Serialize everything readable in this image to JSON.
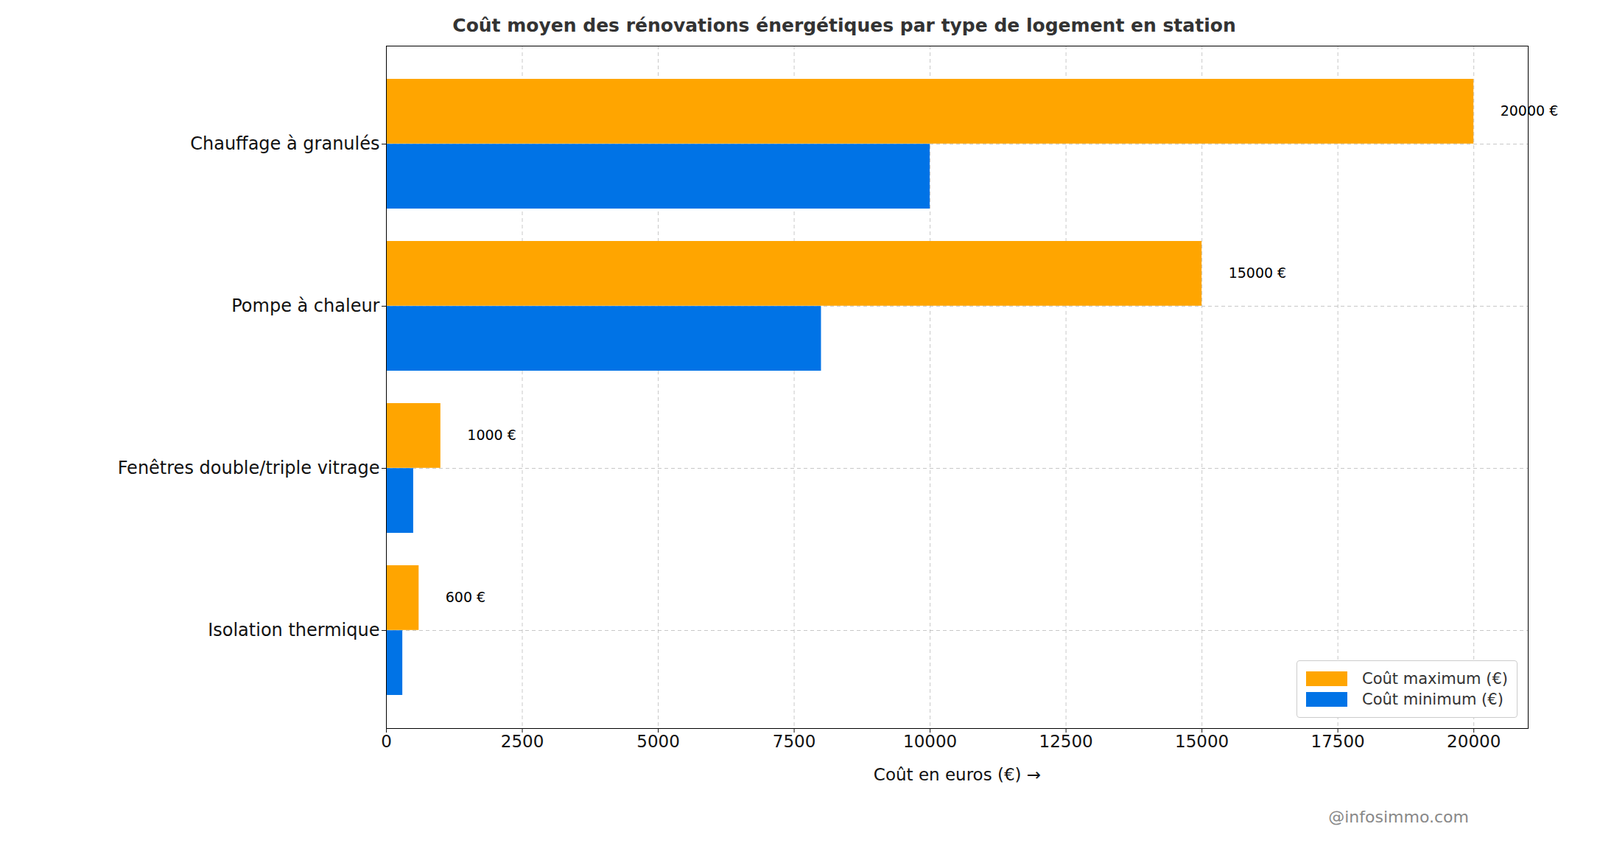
{
  "chart_data": {
    "type": "bar",
    "orientation": "horizontal",
    "title": "Coût moyen des rénovations énergétiques par type de logement en station",
    "x_label": "Coût en euros (€)",
    "source": "@infosimmo.com",
    "categories": [
      "Chauffage à granulés",
      "Pompe à chaleur",
      "Fenêtres double/triple vitrage",
      "Isolation thermique"
    ],
    "series": [
      {
        "name": "Coût maximum (€)",
        "color": "#FFA500",
        "values": [
          20000,
          15000,
          1000,
          600
        ],
        "value_labels": [
          "20000 €",
          "15000 €",
          "1000 €",
          "600 €"
        ]
      },
      {
        "name": "Coût minimum (€)",
        "color": "#0073E6",
        "values": [
          10000,
          8000,
          500,
          300
        ]
      }
    ],
    "xlim": [
      0,
      21000
    ],
    "xticks": [
      0,
      2500,
      5000,
      7500,
      10000,
      12500,
      15000,
      17500,
      20000
    ],
    "grid": true,
    "legend": "lower right",
    "data_labels": true
  }
}
